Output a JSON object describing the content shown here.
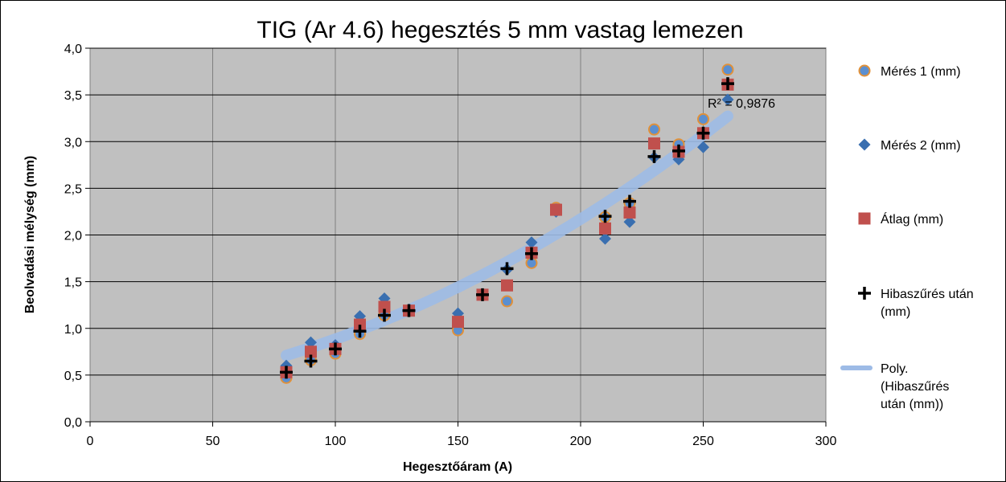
{
  "chart_data": {
    "type": "scatter",
    "title": "TIG (Ar 4.6) hegesztés 5 mm vastag  lemezen",
    "xlabel": "Hegesztőáram (A)",
    "ylabel": "Beolvadási mélység (mm)",
    "xlim": [
      0,
      300
    ],
    "ylim": [
      0,
      4
    ],
    "x_ticks": [
      "0",
      "50",
      "100",
      "150",
      "200",
      "250",
      "300"
    ],
    "y_ticks": [
      "0,0",
      "0,5",
      "1,0",
      "1,5",
      "2,0",
      "2,5",
      "3,0",
      "3,5",
      "4,0"
    ],
    "grid": true,
    "legend_position": "right",
    "series": [
      {
        "name": "Mérés 1 (mm)",
        "marker": "circle",
        "color": "#5b8fd0",
        "edge_color": "#e0913a",
        "x": [
          80,
          90,
          100,
          110,
          120,
          130,
          150,
          160,
          170,
          180,
          190,
          210,
          220,
          230,
          240,
          250,
          260
        ],
        "y": [
          0.47,
          0.66,
          0.73,
          0.94,
          1.14,
          1.19,
          0.98,
          1.36,
          1.29,
          1.7,
          2.29,
          2.19,
          2.34,
          3.13,
          2.97,
          3.24,
          3.77
        ]
      },
      {
        "name": "Mérés 2 (mm)",
        "marker": "diamond",
        "color": "#3a6fb0",
        "x": [
          80,
          90,
          100,
          110,
          120,
          130,
          150,
          160,
          170,
          180,
          190,
          210,
          220,
          230,
          240,
          250,
          260
        ],
        "y": [
          0.6,
          0.85,
          0.82,
          1.13,
          1.32,
          1.2,
          1.16,
          1.36,
          1.63,
          1.92,
          2.25,
          1.96,
          2.14,
          2.83,
          2.81,
          2.94,
          3.45
        ]
      },
      {
        "name": "Átlag (mm)",
        "marker": "square",
        "color": "#c0504d",
        "x": [
          80,
          90,
          100,
          110,
          120,
          130,
          150,
          160,
          170,
          180,
          190,
          210,
          220,
          230,
          240,
          250,
          260
        ],
        "y": [
          0.53,
          0.75,
          0.78,
          1.04,
          1.23,
          1.19,
          1.07,
          1.36,
          1.46,
          1.81,
          2.27,
          2.07,
          2.24,
          2.98,
          2.89,
          3.09,
          3.61
        ]
      },
      {
        "name": "Hibaszűrés után (mm)",
        "legend_lines": [
          "Hibaszűrés után",
          "(mm)"
        ],
        "marker": "plus",
        "color": "#000000",
        "x": [
          80,
          90,
          100,
          110,
          120,
          130,
          160,
          170,
          180,
          210,
          220,
          230,
          240,
          250,
          260
        ],
        "y": [
          0.53,
          0.65,
          0.78,
          0.97,
          1.14,
          1.19,
          1.36,
          1.64,
          1.8,
          2.2,
          2.36,
          2.84,
          2.9,
          3.09,
          3.62
        ]
      }
    ],
    "trendline": {
      "name": "Poly. (Hibaszűrés után (mm))",
      "legend_lines": [
        "Poly.",
        "(Hibaszűrés",
        "után (mm))"
      ],
      "type": "polynomial",
      "color": "#9dbbe6",
      "x_range": [
        80,
        260
      ],
      "coefficients": [
        0.29,
        0.0025,
        3.45e-05
      ],
      "r2_label": "R² = 0,9876"
    },
    "colors": {
      "plot_background": "#c0c0c0",
      "grid": "#000000",
      "frame": "#000000"
    }
  }
}
